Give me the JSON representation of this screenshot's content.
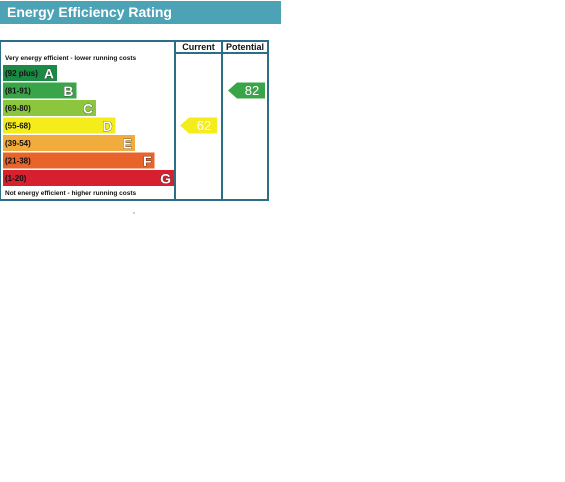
{
  "title": "Energy Efficiency Rating",
  "columns": {
    "current": "Current",
    "potential": "Potential"
  },
  "notes": {
    "top": "Very energy efficient - lower running costs",
    "bottom": "Not energy efficient - higher running costs"
  },
  "chart_data": {
    "type": "bar",
    "title": "Energy Efficiency Rating",
    "bands": [
      {
        "range": "(92 plus)",
        "letter": "A",
        "color": "#1b8a45"
      },
      {
        "range": "(81-91)",
        "letter": "B",
        "color": "#39a548"
      },
      {
        "range": "(69-80)",
        "letter": "C",
        "color": "#8cc63f"
      },
      {
        "range": "(55-68)",
        "letter": "D",
        "color": "#f5ed1b"
      },
      {
        "range": "(39-54)",
        "letter": "E",
        "color": "#f2ab3d"
      },
      {
        "range": "(21-38)",
        "letter": "F",
        "color": "#e8642b"
      },
      {
        "range": "(1-20)",
        "letter": "G",
        "color": "#d7202f"
      }
    ],
    "current": {
      "value": 62,
      "band": "D"
    },
    "potential": {
      "value": 82,
      "band": "B"
    }
  }
}
